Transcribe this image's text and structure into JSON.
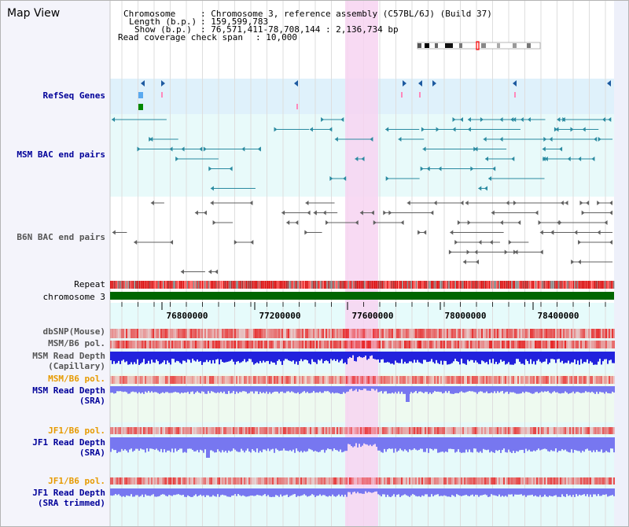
{
  "view_title": "Map View",
  "header": {
    "chromosome_label": "Chromosome",
    "chromosome_value": ": Chromosome 3, reference assembly (C57BL/6J) (Build 37)",
    "length_label": "Length (b.p.)",
    "length_value": ": 159,599,783",
    "show_label": "Show (b.p.)",
    "show_value": ": 76,571,411-78,708,144 : 2,136,734 bp",
    "coverage_label": "Read coverage check span",
    "coverage_value": ": 10,000"
  },
  "tracks": {
    "refseq": "RefSeq Genes",
    "msm_bac": "MSM BAC end pairs",
    "b6n_bac": "B6N BAC end pairs",
    "repeat": "Repeat",
    "chromosome": "chromosome 3",
    "dbsnp": "dbSNP(Mouse)",
    "msm_b6_pol_1": "MSM/B6 pol.",
    "msm_depth_cap_1": "MSM Read Depth",
    "msm_depth_cap_2": "(Capillary)",
    "msm_b6_pol_2": "MSM/B6 pol.",
    "msm_depth_sra_1": "MSM Read Depth",
    "msm_depth_sra_2": "(SRA)",
    "jf1_b6_pol_1": "JF1/B6 pol.",
    "jf1_depth_sra_1": "JF1 Read Depth",
    "jf1_depth_sra_2": "(SRA)",
    "jf1_b6_pol_2": "JF1/B6 pol.",
    "jf1_depth_trim_1": "JF1 Read Depth",
    "jf1_depth_trim_2": "(SRA trimmed)"
  },
  "ruler": {
    "ticks": [
      "76800000",
      "77200000",
      "77600000",
      "78000000",
      "78400000"
    ]
  },
  "colors": {
    "navy_label": "#000099",
    "gray_label": "#555555",
    "orange_label": "#e69a00",
    "highlight": "#f7d4f1",
    "refseq_band": "#dff1fb",
    "cyan_band": "#e8fafa",
    "track_teal": "#2a8aa0",
    "depth_dark": "#2222dd",
    "depth_light": "#7777f0",
    "chromosome_bar": "#006600"
  }
}
